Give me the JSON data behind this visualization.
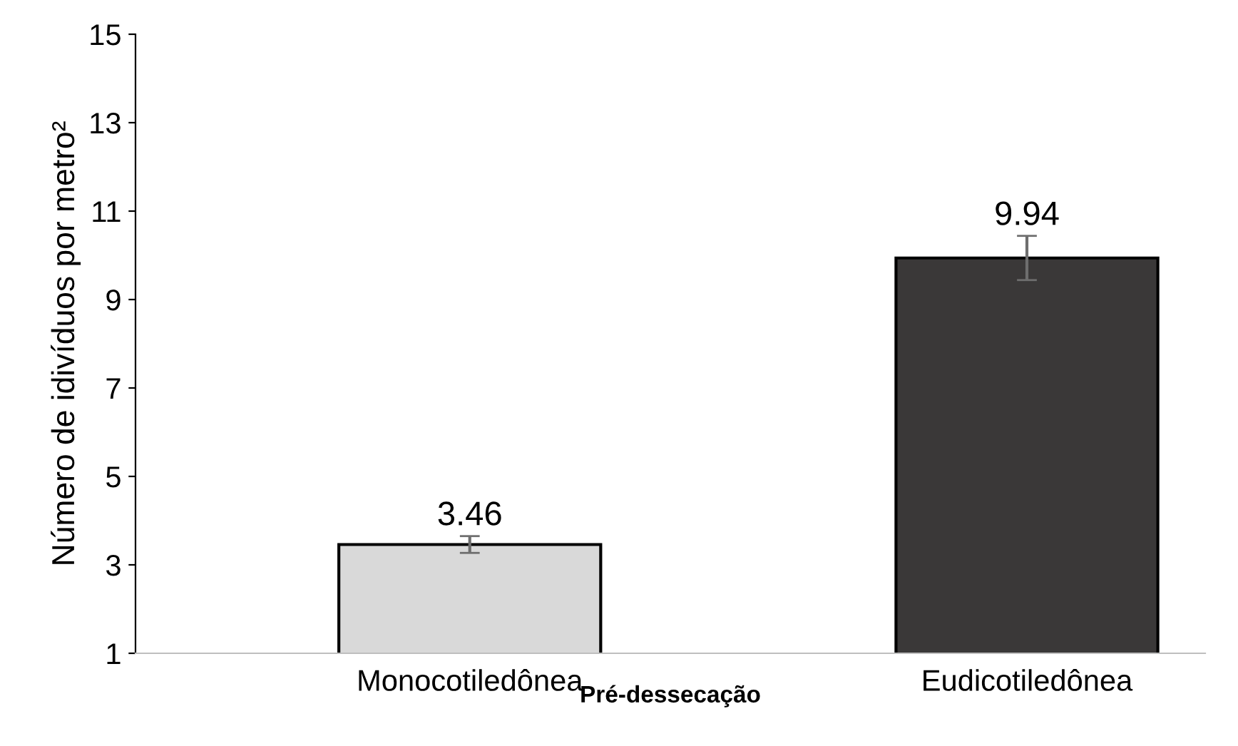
{
  "chart_data": {
    "type": "bar",
    "xlabel": "Pré-dessecação",
    "ylabel": "Número de idivíduos por metro²",
    "categories": [
      "Monocotiledônea",
      "Eudicotiledônea"
    ],
    "values": [
      3.46,
      9.94
    ],
    "colors": [
      "#d9d9d9",
      "#3a3838"
    ],
    "errors": [
      0.19,
      0.5
    ],
    "ylim": [
      1,
      15
    ],
    "yticks": [
      1,
      3,
      5,
      7,
      9,
      11,
      13,
      15
    ],
    "grid": false,
    "legend": false,
    "data_labels": true
  }
}
